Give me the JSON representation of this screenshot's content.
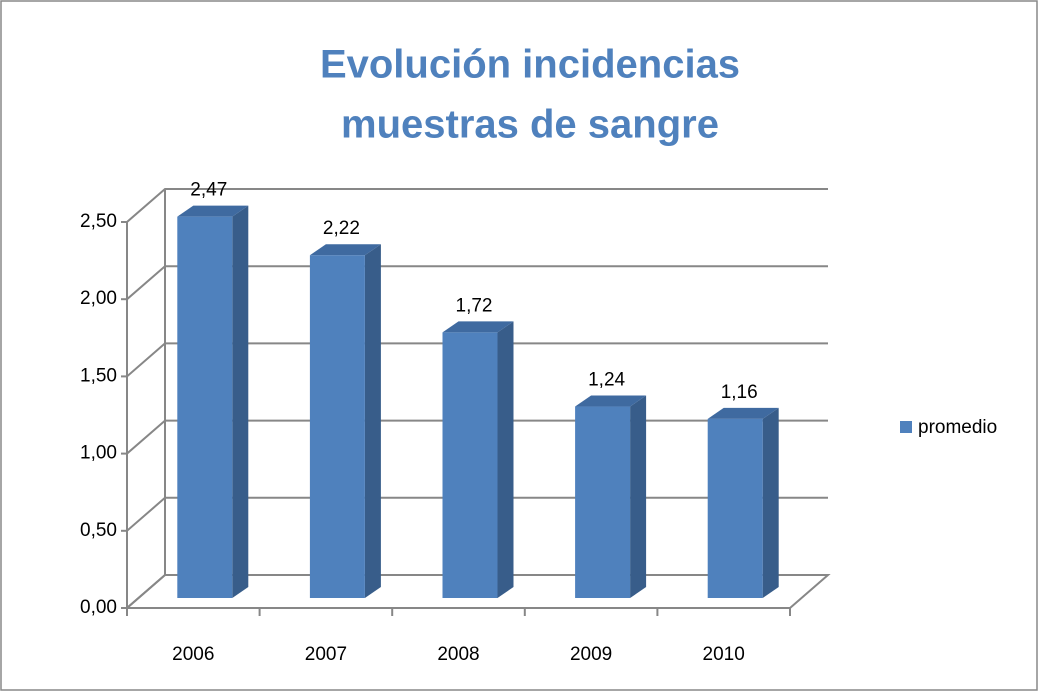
{
  "chart_data": {
    "type": "bar3d",
    "title": [
      "Evolución incidencias",
      "muestras de sangre"
    ],
    "categories": [
      "2006",
      "2007",
      "2008",
      "2009",
      "2010"
    ],
    "series": [
      {
        "name": "promedio",
        "color": "#4f81bd",
        "values": [
          2.47,
          2.22,
          1.72,
          1.24,
          1.16
        ],
        "value_labels": [
          "2,47",
          "2,22",
          "1,72",
          "1,24",
          "1,16"
        ]
      }
    ],
    "ylim": [
      0,
      2.5
    ],
    "yticks": [
      {
        "value": 0,
        "label": "0,00"
      },
      {
        "value": 0.5,
        "label": "0,50"
      },
      {
        "value": 1,
        "label": "1,00"
      },
      {
        "value": 1.5,
        "label": "1,50"
      },
      {
        "value": 2,
        "label": "2,00"
      },
      {
        "value": 2.5,
        "label": "2,50"
      }
    ],
    "grid": true,
    "legend": "right"
  }
}
